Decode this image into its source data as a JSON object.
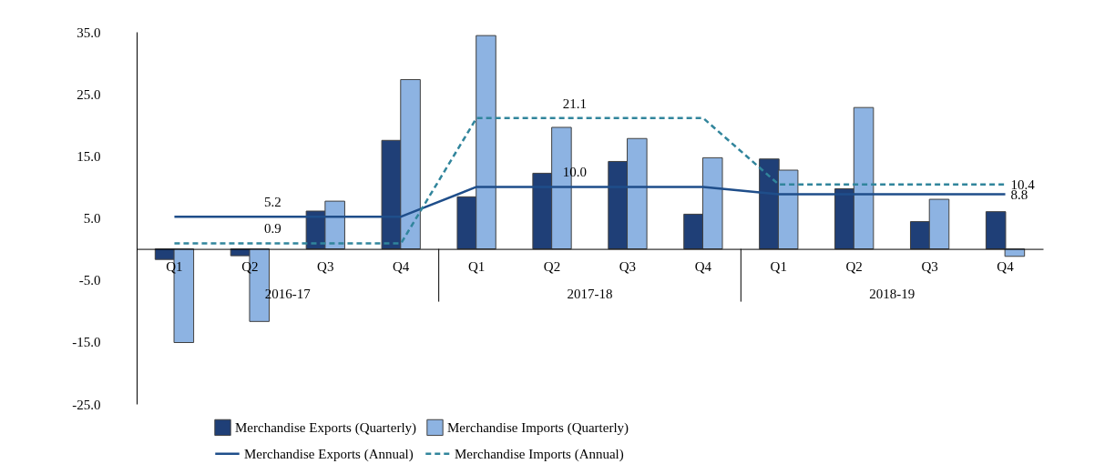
{
  "chart_data": {
    "type": "bar",
    "categories": [
      "Q1",
      "Q2",
      "Q3",
      "Q4",
      "Q1",
      "Q2",
      "Q3",
      "Q4",
      "Q1",
      "Q2",
      "Q3",
      "Q4"
    ],
    "annotations": [
      "2016-17",
      "2017-18",
      "2018-19"
    ],
    "ylim": [
      -25,
      35
    ],
    "yticks": [
      {
        "value": -25,
        "label": "-25.0"
      },
      {
        "value": -15,
        "label": "-15.0"
      },
      {
        "value": -5,
        "label": "-5.0"
      },
      {
        "value": 5,
        "label": "5.0"
      },
      {
        "value": 15,
        "label": "15.0"
      },
      {
        "value": 25,
        "label": "25.0"
      },
      {
        "value": 35,
        "label": "35.0"
      }
    ],
    "grid": false,
    "legend": "bottom",
    "series": [
      {
        "name": "Merchandise Exports (Quarterly)",
        "color": "#1f3f77",
        "values": [
          -1.7,
          -1.1,
          6.1,
          17.5,
          8.4,
          12.2,
          14.1,
          5.6,
          14.5,
          9.7,
          4.4,
          6.0
        ]
      },
      {
        "name": "Merchandise Imports (Quarterly)",
        "color": "#8db3e2",
        "values": [
          -15.1,
          -11.7,
          7.7,
          27.3,
          34.4,
          19.6,
          17.8,
          14.7,
          12.7,
          22.8,
          8.0,
          -1.2
        ]
      },
      {
        "name": "Merchandise Exports (Annual)",
        "type": "line",
        "color": "#1f4e8a",
        "line_style": "solid",
        "values": [
          5.2,
          5.2,
          5.2,
          5.2,
          10.0,
          10.0,
          10.0,
          10.0,
          8.8,
          8.8,
          8.8,
          8.8
        ],
        "value_labels": [
          null,
          "5.2",
          null,
          null,
          null,
          "10.0",
          null,
          null,
          null,
          null,
          null,
          "8.8"
        ]
      },
      {
        "name": "Merchandise Imports (Annual)",
        "type": "line",
        "color": "#31859c",
        "line_style": "dashed",
        "values": [
          0.9,
          0.9,
          0.9,
          0.9,
          21.1,
          21.1,
          21.1,
          21.1,
          10.4,
          10.4,
          10.4,
          10.4
        ],
        "value_labels": [
          null,
          "0.9",
          null,
          null,
          null,
          "21.1",
          null,
          null,
          null,
          null,
          null,
          "10.4"
        ]
      }
    ]
  }
}
